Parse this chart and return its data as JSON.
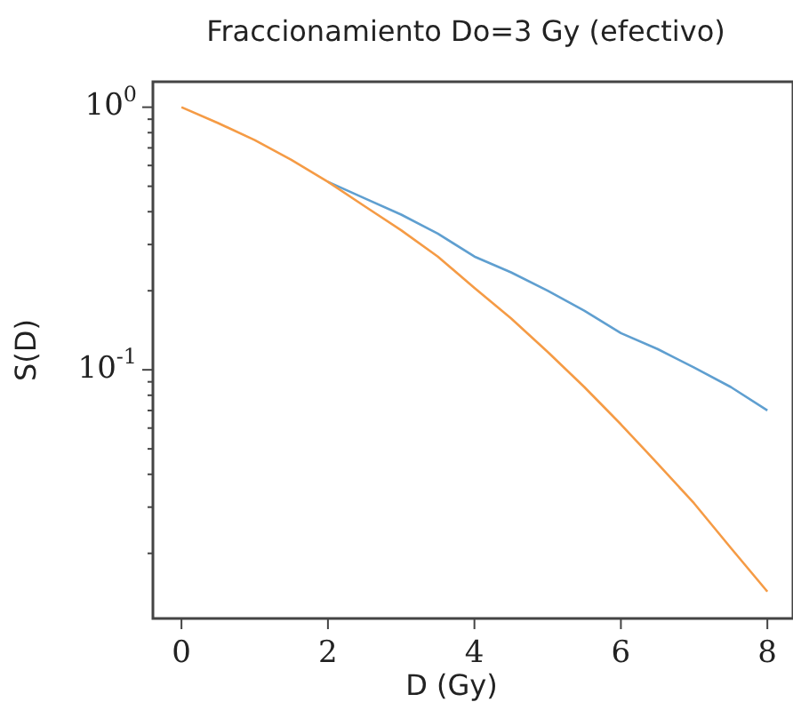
{
  "chart_data": {
    "type": "line",
    "title": "Fraccionamiento Do=3 Gy (efectivo)",
    "xlabel": "D (Gy)",
    "ylabel": "S(D)",
    "x": [
      0,
      0.5,
      1,
      1.5,
      2,
      2.5,
      3,
      3.5,
      4,
      4.5,
      5,
      5.5,
      6,
      6.5,
      7,
      7.5,
      8
    ],
    "series": [
      {
        "color": "#5f9fd0",
        "values": [
          null,
          null,
          null,
          null,
          0.52,
          0.45,
          0.39,
          0.33,
          0.27,
          0.235,
          0.2,
          0.168,
          0.138,
          0.12,
          0.102,
          0.086,
          0.07
        ]
      },
      {
        "color": "#f59b45",
        "values": [
          1,
          0.87,
          0.75,
          0.63,
          0.52,
          0.42,
          0.34,
          0.27,
          0.205,
          0.157,
          0.117,
          0.086,
          0.062,
          0.044,
          0.031,
          0.021,
          0.0143
        ]
      }
    ],
    "xlim": [
      -0.39,
      8.35
    ],
    "ylim": [
      0.0113,
      1.25
    ],
    "xticks": [
      0,
      2,
      4,
      6,
      8
    ],
    "yticks": [
      {
        "value": 1,
        "label": "10$^{0}$"
      },
      {
        "value": 0.1,
        "label": "10$^{-1}$"
      },
      {
        "value": 0.02,
        "label": null
      },
      {
        "value": 0.03,
        "label": null
      },
      {
        "value": 0.04,
        "label": null
      },
      {
        "value": 0.05,
        "label": null
      },
      {
        "value": 0.06,
        "label": null
      },
      {
        "value": 0.07,
        "label": null
      },
      {
        "value": 0.08,
        "label": null
      },
      {
        "value": 0.09,
        "label": null
      },
      {
        "value": 0.2,
        "label": null
      },
      {
        "value": 0.3,
        "label": null
      },
      {
        "value": 0.4,
        "label": null
      },
      {
        "value": 0.5,
        "label": null
      },
      {
        "value": 0.6,
        "label": null
      },
      {
        "value": 0.7,
        "label": null
      },
      {
        "value": 0.8,
        "label": null
      },
      {
        "value": 0.9,
        "label": null
      }
    ],
    "log": "y",
    "grid": false,
    "legend": false,
    "marker": "none",
    "line_style": "solid"
  }
}
